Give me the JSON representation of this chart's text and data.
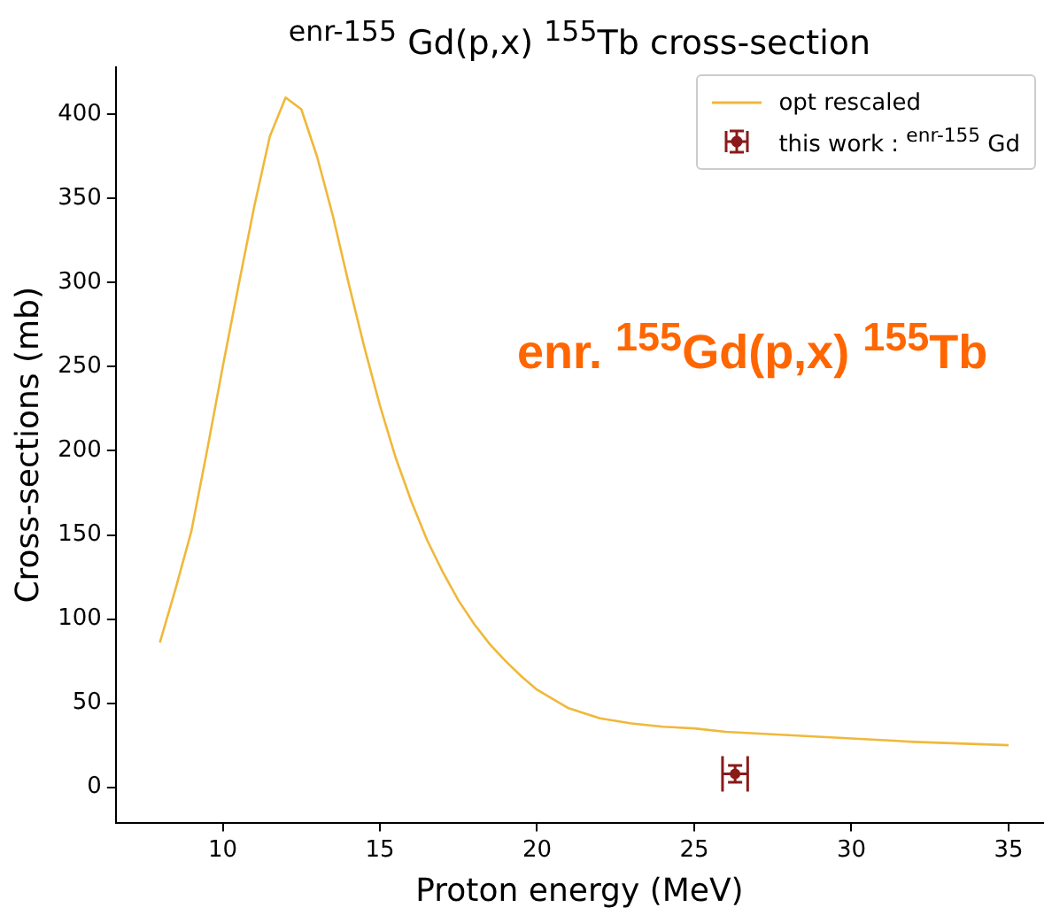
{
  "chart_data": {
    "type": "line",
    "title": "$^{enr-155}$ Gd(p,x) $^{155}$Tb cross-section",
    "xlabel": "Proton energy (MeV)",
    "ylabel": "Cross-sections (mb)",
    "annotations": [
      "enr. $^{155}$Gd(p,x) $^{155}$Tb"
    ],
    "xlim": [
      6.6,
      36.1
    ],
    "ylim": [
      -21,
      428
    ],
    "xticks": [
      10,
      15,
      20,
      25,
      30,
      35
    ],
    "yticks": [
      0,
      50,
      100,
      150,
      200,
      250,
      300,
      350,
      400
    ],
    "grid": false,
    "legend": "top right",
    "series": [
      {
        "name": "opt rescaled",
        "color": "#f0b83a",
        "marker": "none",
        "x": [
          8,
          8.5,
          9,
          9.5,
          10,
          10.5,
          11,
          11.5,
          12,
          12.5,
          13,
          13.5,
          14,
          14.5,
          15,
          15.5,
          16,
          16.5,
          17,
          17.5,
          18,
          18.5,
          19,
          19.5,
          20,
          21,
          22,
          23,
          24,
          25,
          26,
          28,
          30,
          32,
          35
        ],
        "values": [
          86,
          118,
          152,
          200,
          250,
          298,
          345,
          387,
          410,
          403,
          375,
          340,
          300,
          262,
          227,
          196,
          170,
          147,
          128,
          111,
          97,
          85,
          75,
          66,
          58,
          47,
          41,
          38,
          36,
          35,
          33,
          31,
          29,
          27,
          25
        ]
      },
      {
        "name": "this work : $^{enr-155}$ Gd",
        "type": "scatter",
        "color": "#8b1a1a",
        "x": [
          26.3
        ],
        "values": [
          8
        ],
        "errors": [
          5
        ],
        "xerrors": [
          0.4
        ]
      }
    ]
  }
}
